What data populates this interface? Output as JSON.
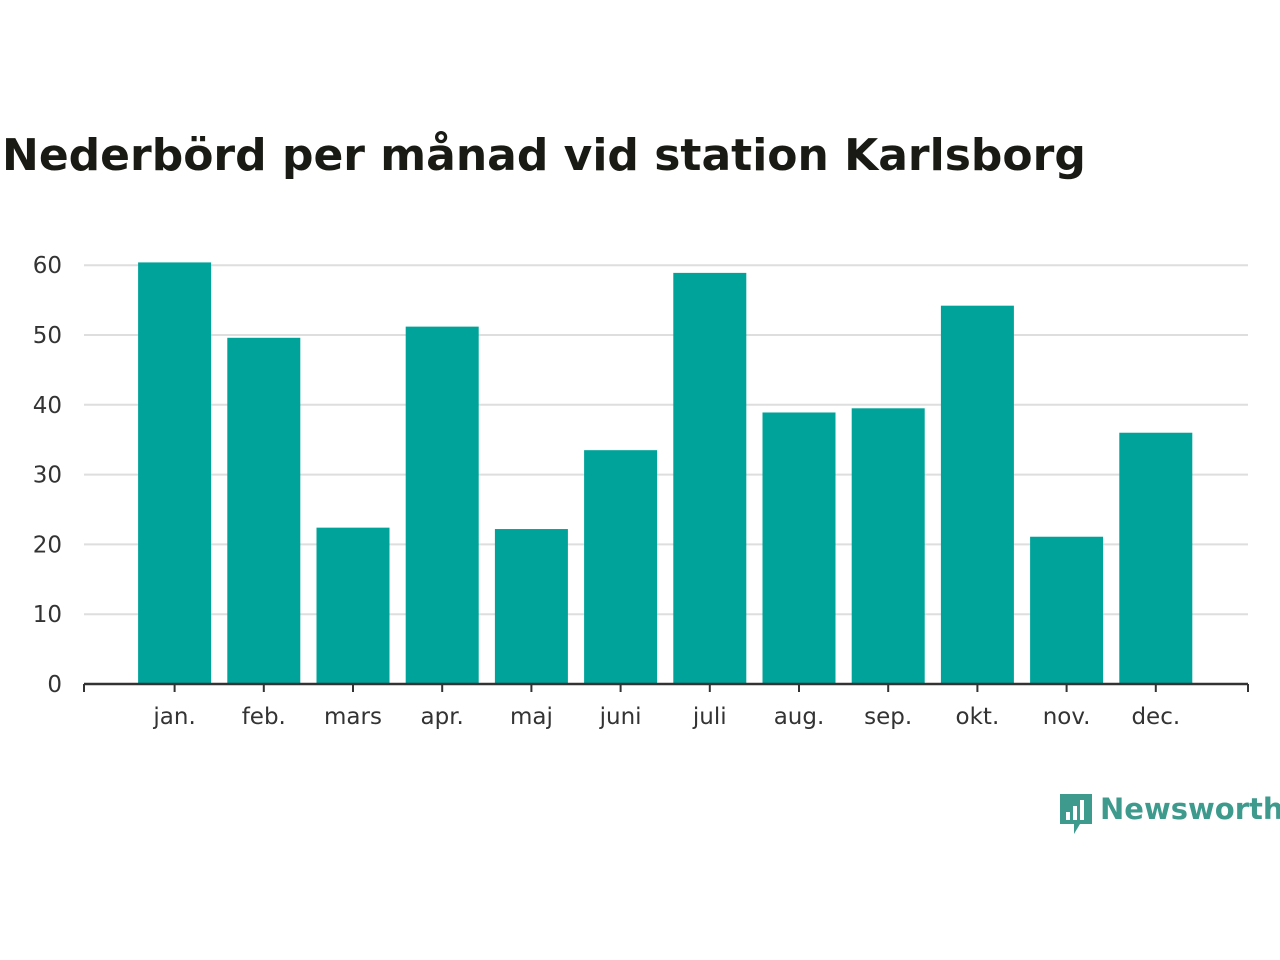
{
  "colors": {
    "bar": "#00a39a",
    "grid": "#dedede",
    "axis": "#333333",
    "tick_text": "#333333",
    "title": "#1a1a14",
    "brand": "#3e9a8d"
  },
  "brand": {
    "name": "Newsworthy",
    "icon": "newsworthy-logo-icon"
  },
  "chart_data": {
    "type": "bar",
    "title": "Nederbörd per månad vid station Karlsborg",
    "xlabel": "",
    "ylabel": "",
    "categories": [
      "jan.",
      "feb.",
      "mars",
      "apr.",
      "maj",
      "juni",
      "juli",
      "aug.",
      "sep.",
      "okt.",
      "nov.",
      "dec."
    ],
    "values": [
      60.4,
      49.6,
      22.4,
      51.2,
      22.2,
      33.5,
      58.9,
      38.9,
      39.5,
      54.2,
      21.1,
      36.0
    ],
    "ylim": [
      0,
      60
    ],
    "yticks": [
      0,
      10,
      20,
      30,
      40,
      50,
      60
    ],
    "grid": true,
    "legend": "none"
  }
}
